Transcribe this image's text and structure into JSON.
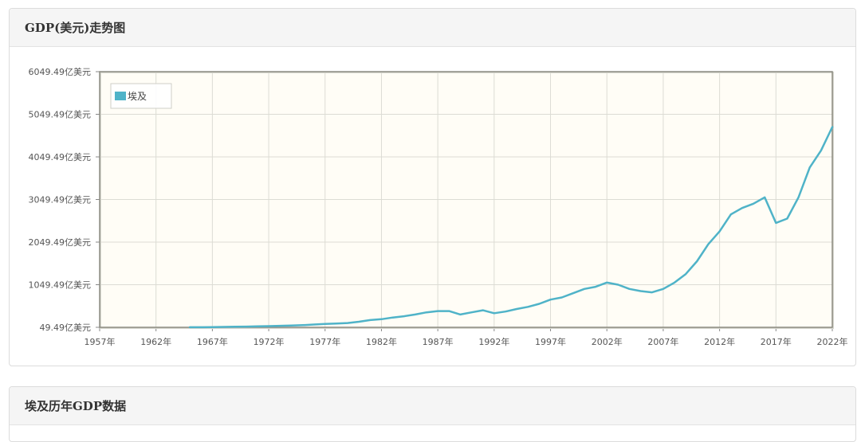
{
  "panel1": {
    "title": "GDP(美元)走势图"
  },
  "panel2": {
    "title": "埃及历年GDP数据"
  },
  "chart_data": {
    "type": "line",
    "y_unit": "亿美元",
    "year_suffix": "年",
    "xlim": [
      1957,
      2022
    ],
    "ylim": [
      49.49,
      6049.49
    ],
    "x_ticks": [
      1957,
      1962,
      1967,
      1972,
      1977,
      1982,
      1987,
      1992,
      1997,
      2002,
      2007,
      2012,
      2017,
      2022
    ],
    "y_ticks": [
      49.49,
      1049.49,
      2049.49,
      3049.49,
      4049.49,
      5049.49,
      6049.49
    ],
    "grid": true,
    "legend_position": "top-left",
    "series": [
      {
        "name": "埃及",
        "color": "#4fb3c8",
        "x": [
          1965,
          1966,
          1967,
          1968,
          1969,
          1970,
          1971,
          1972,
          1973,
          1974,
          1975,
          1976,
          1977,
          1978,
          1979,
          1980,
          1981,
          1982,
          1983,
          1984,
          1985,
          1986,
          1987,
          1988,
          1989,
          1990,
          1991,
          1992,
          1993,
          1994,
          1995,
          1996,
          1997,
          1998,
          1999,
          2000,
          2001,
          2002,
          2003,
          2004,
          2005,
          2006,
          2007,
          2008,
          2009,
          2010,
          2011,
          2012,
          2013,
          2014,
          2015,
          2016,
          2017,
          2018,
          2019,
          2020,
          2021,
          2022
        ],
        "y": [
          51,
          52,
          55,
          58,
          62,
          67,
          72,
          78,
          85,
          90,
          100,
          115,
          130,
          140,
          150,
          180,
          220,
          240,
          280,
          310,
          350,
          400,
          430,
          430,
          350,
          400,
          450,
          380,
          420,
          480,
          530,
          600,
          700,
          750,
          850,
          950,
          1000,
          1100,
          1050,
          950,
          900,
          870,
          950,
          1100,
          1300,
          1600,
          2000,
          2300,
          2700,
          2850,
          2950,
          3100,
          2500,
          2600,
          3100,
          3800,
          4200,
          4750
        ]
      }
    ]
  }
}
